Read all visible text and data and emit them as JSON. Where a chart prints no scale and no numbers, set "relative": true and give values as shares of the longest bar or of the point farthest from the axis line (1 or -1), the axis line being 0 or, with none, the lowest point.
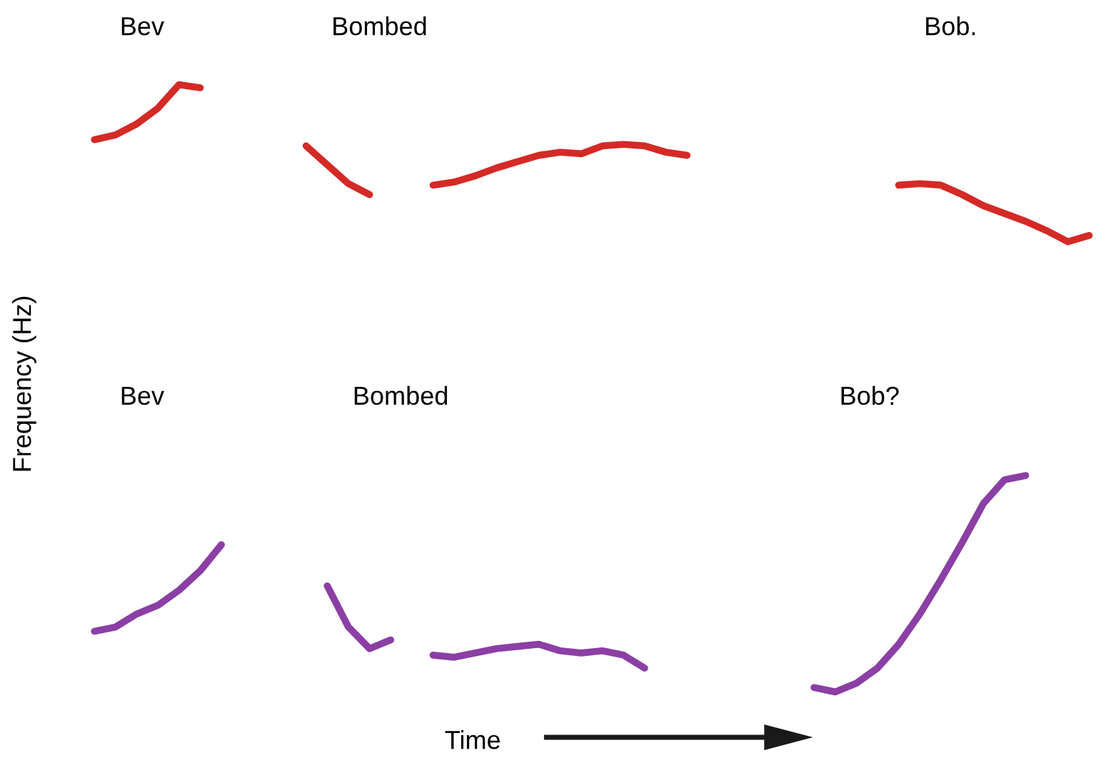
{
  "chart_data": [
    {
      "type": "line",
      "relative": true,
      "ylabel": "Frequency (Hz)",
      "annotations": [
        "Bev",
        "Bombed",
        "Bob."
      ],
      "categories": [
        null,
        null,
        null,
        null,
        null,
        null,
        null,
        null,
        null,
        null,
        null,
        null,
        null,
        null,
        null,
        null,
        null,
        null,
        null,
        null,
        null,
        null,
        null,
        null,
        null,
        null,
        null,
        null,
        null,
        null,
        null,
        null,
        null,
        null,
        null,
        null,
        null,
        null,
        null,
        null,
        null,
        null,
        null,
        null,
        null,
        null,
        null,
        null
      ],
      "series": [
        {
          "color": "#d42a26",
          "values": [
            0.65,
            0.68,
            0.75,
            0.85,
            1.0,
            0.98,
            null,
            null,
            null,
            null,
            null,
            null,
            null,
            null,
            null,
            null,
            null,
            null,
            null,
            null,
            null,
            null,
            null,
            null,
            null,
            null,
            null,
            null,
            null,
            null,
            null,
            null,
            null,
            null,
            null,
            null,
            null,
            null,
            null,
            null,
            null,
            null,
            null,
            null,
            null,
            null,
            null,
            null
          ]
        },
        {
          "color": "#d42a26",
          "values": [
            null,
            null,
            null,
            null,
            null,
            null,
            null,
            null,
            null,
            null,
            0.61,
            0.49,
            0.37,
            0.3,
            null,
            null,
            0.36,
            0.38,
            0.42,
            0.47,
            0.51,
            0.55,
            0.57,
            0.56,
            0.61,
            0.62,
            0.61,
            0.57,
            0.55,
            null,
            null,
            null,
            null,
            null,
            null,
            null,
            null,
            null,
            null,
            null,
            null,
            null,
            null,
            null,
            null,
            null,
            null,
            null
          ]
        },
        {
          "color": "#d42a26",
          "values": [
            null,
            null,
            null,
            null,
            null,
            null,
            null,
            null,
            null,
            null,
            null,
            null,
            null,
            null,
            null,
            null,
            null,
            null,
            null,
            null,
            null,
            null,
            null,
            null,
            null,
            null,
            null,
            null,
            null,
            null,
            null,
            null,
            null,
            null,
            null,
            null,
            null,
            null,
            0.36,
            0.37,
            0.36,
            0.3,
            0.23,
            0.18,
            0.13,
            0.07,
            0.0,
            0.04
          ]
        }
      ]
    },
    {
      "type": "line",
      "relative": true,
      "xlabel": "Time",
      "annotations": [
        "Bev",
        "Bombed",
        "Bob?"
      ],
      "categories": [
        null,
        null,
        null,
        null,
        null,
        null,
        null,
        null,
        null,
        null,
        null,
        null,
        null,
        null,
        null,
        null,
        null,
        null,
        null,
        null,
        null,
        null,
        null,
        null,
        null,
        null,
        null,
        null,
        null,
        null,
        null,
        null,
        null,
        null,
        null,
        null,
        null,
        null,
        null,
        null,
        null,
        null,
        null,
        null,
        null,
        null,
        null,
        null
      ],
      "series": [
        {
          "color": "#8b3fa5",
          "values": [
            0.28,
            0.3,
            0.36,
            0.4,
            0.47,
            0.56,
            0.68,
            null,
            null,
            null,
            null,
            null,
            null,
            null,
            null,
            null,
            null,
            null,
            null,
            null,
            null,
            null,
            null,
            null,
            null,
            null,
            null,
            null,
            null,
            null,
            null,
            null,
            null,
            null,
            null,
            null,
            null,
            null,
            null,
            null,
            null,
            null,
            null,
            null,
            null,
            null,
            null,
            null
          ]
        },
        {
          "color": "#8b3fa5",
          "values": [
            null,
            null,
            null,
            null,
            null,
            null,
            null,
            null,
            null,
            null,
            null,
            0.49,
            0.3,
            0.2,
            0.24,
            null,
            0.17,
            0.16,
            0.18,
            0.2,
            0.21,
            0.22,
            0.19,
            0.18,
            0.19,
            0.17,
            0.11,
            null,
            null,
            null,
            null,
            null,
            null,
            null,
            null,
            null,
            null,
            null,
            null,
            null,
            null,
            null,
            null,
            null,
            null,
            null,
            null,
            null
          ]
        },
        {
          "color": "#8b3fa5",
          "values": [
            null,
            null,
            null,
            null,
            null,
            null,
            null,
            null,
            null,
            null,
            null,
            null,
            null,
            null,
            null,
            null,
            null,
            null,
            null,
            null,
            null,
            null,
            null,
            null,
            null,
            null,
            null,
            null,
            null,
            null,
            null,
            null,
            null,
            null,
            0.02,
            0.0,
            0.04,
            0.11,
            0.22,
            0.36,
            0.52,
            0.69,
            0.87,
            0.98,
            1.0,
            null,
            null,
            null
          ]
        }
      ]
    }
  ]
}
